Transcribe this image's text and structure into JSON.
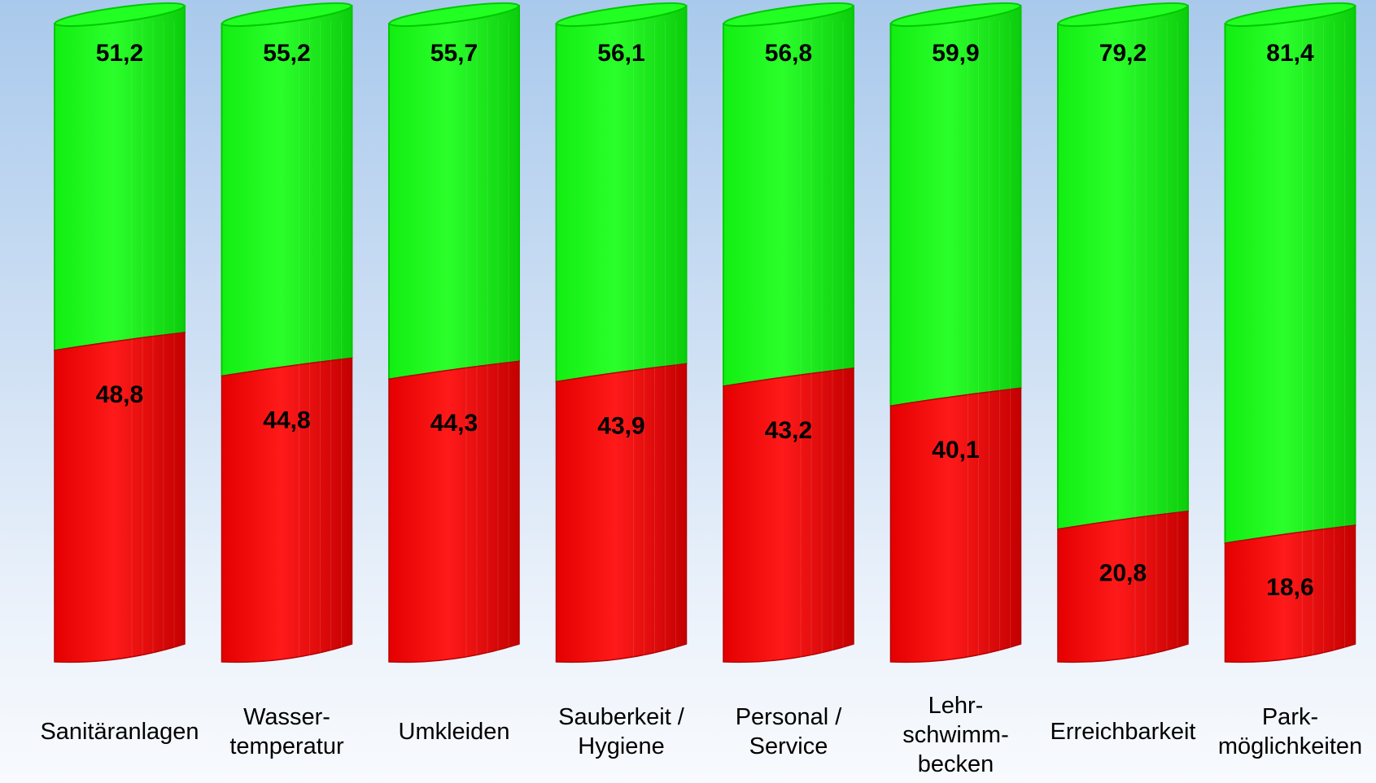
{
  "chart_data": {
    "type": "bar",
    "stacked": true,
    "orientation": "vertical",
    "shape": "cylinder",
    "title": "",
    "xlabel": "",
    "ylabel": "",
    "ylim": [
      0,
      100
    ],
    "grid": false,
    "legend": "none",
    "categories": [
      [
        "Sanitäranlagen"
      ],
      [
        "Wasser-",
        "temperatur"
      ],
      [
        "Umkleiden"
      ],
      [
        "Sauberkeit /",
        "Hygiene"
      ],
      [
        "Personal /",
        "Service"
      ],
      [
        "Lehr-",
        "schwimm-",
        "becken"
      ],
      [
        "Erreichbarkeit"
      ],
      [
        "Park-",
        "möglichkeiten"
      ]
    ],
    "series": [
      {
        "color": "#ff0000",
        "values": [
          48.8,
          44.8,
          44.3,
          43.9,
          43.2,
          40.1,
          20.8,
          18.6
        ],
        "labels": [
          "48,8",
          "44,8",
          "44,3",
          "43,9",
          "43,2",
          "40,1",
          "20,8",
          "18,6"
        ]
      },
      {
        "color": "#00ee00",
        "values": [
          51.2,
          55.2,
          55.7,
          56.1,
          56.8,
          59.9,
          79.2,
          81.4
        ],
        "labels": [
          "51,2",
          "55,2",
          "55,7",
          "56,1",
          "56,8",
          "59,9",
          "79,2",
          "81,4"
        ]
      }
    ]
  }
}
